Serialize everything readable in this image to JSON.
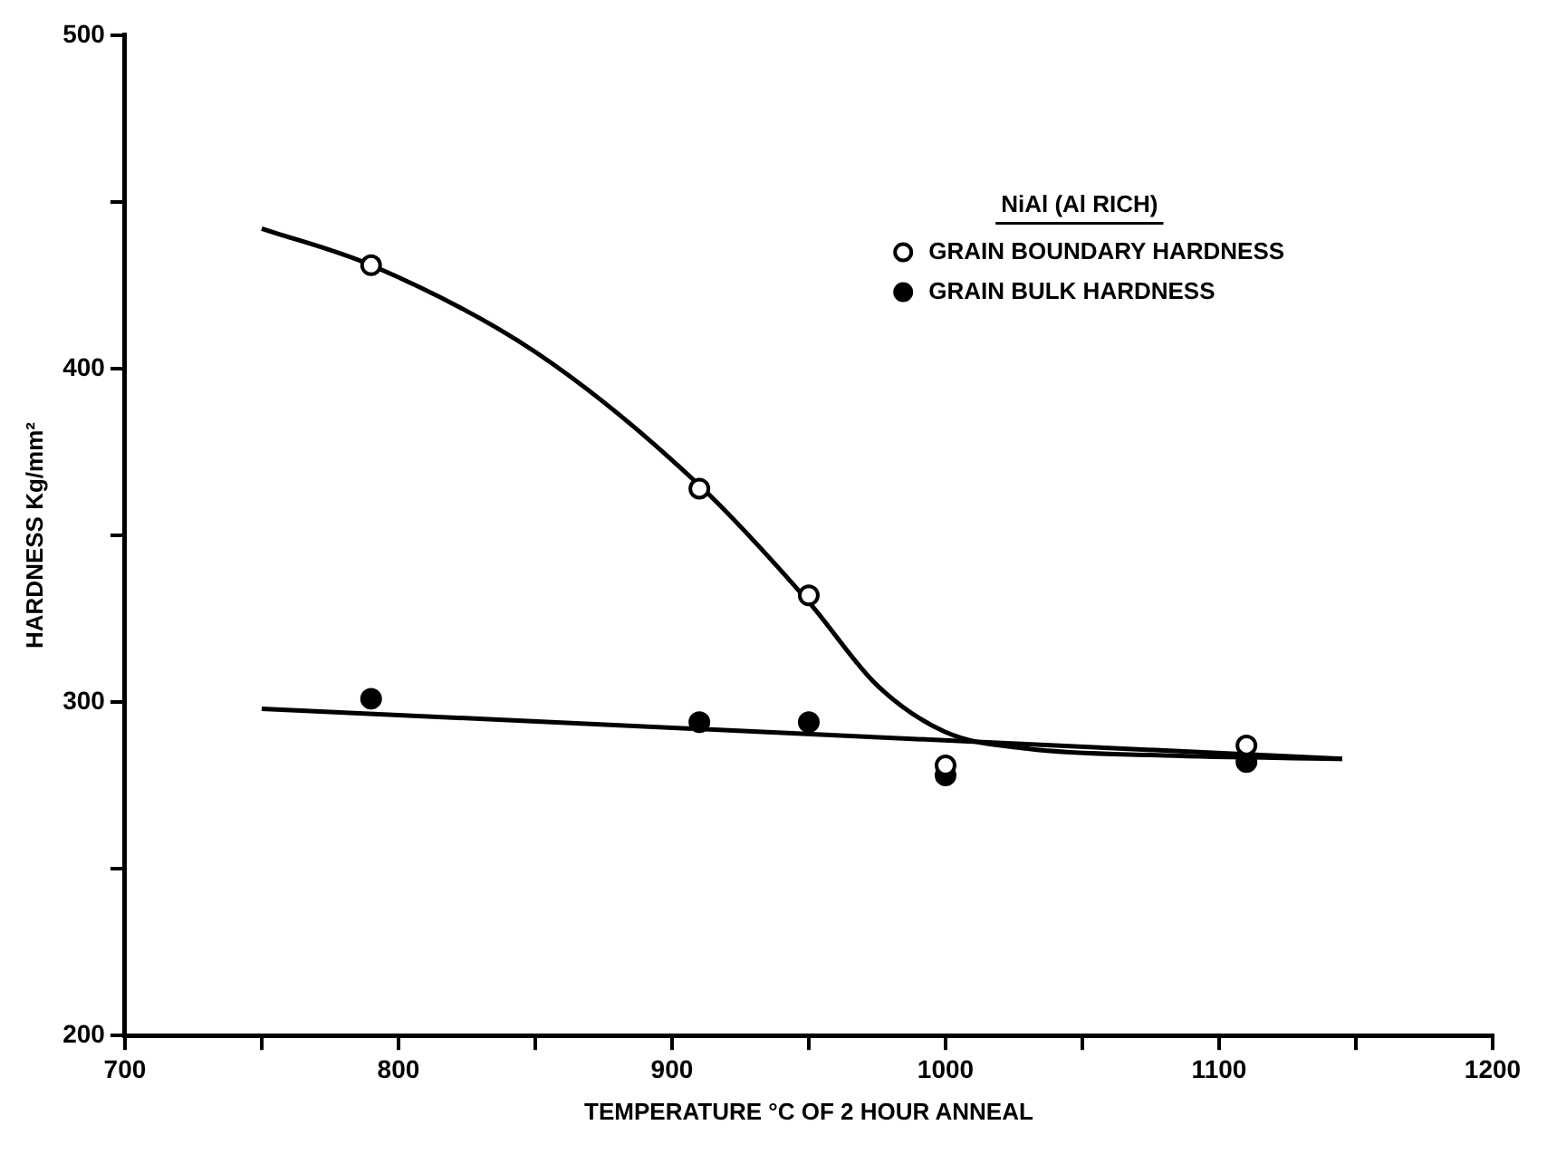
{
  "chart_data": {
    "type": "scatter",
    "xlabel": "TEMPERATURE °C OF 2 HOUR ANNEAL",
    "ylabel": "HARDNESS Kg/mm²",
    "legend_title": "NiAl (Al RICH)",
    "legend": "top right",
    "grid": false,
    "marker": "circle",
    "xlim": [
      700,
      1200
    ],
    "xticks": [
      700,
      {
        "value": 750,
        "label": null
      },
      800,
      {
        "value": 850,
        "label": null
      },
      900,
      {
        "value": 950,
        "label": null
      },
      1000,
      {
        "value": 1050,
        "label": null
      },
      1100,
      {
        "value": 1150,
        "label": null
      },
      1200
    ],
    "ylim": [
      200,
      500
    ],
    "yticks": [
      200,
      {
        "value": 250,
        "label": null
      },
      300,
      {
        "value": 350,
        "label": null
      },
      400,
      {
        "value": 450,
        "label": null
      },
      500
    ],
    "series": [
      {
        "name": "GRAIN BOUNDARY HARDNESS",
        "color": "#000000",
        "x": [
          790,
          910,
          950,
          1000,
          1110
        ],
        "values": [
          431,
          364,
          332,
          281,
          287
        ]
      },
      {
        "name": "GRAIN BULK HARDNESS",
        "color": "#000000",
        "x": [
          790,
          910,
          950,
          1000,
          1110
        ],
        "values": [
          301,
          294,
          294,
          278,
          282
        ]
      },
      {
        "type": "line",
        "marker": "none",
        "color": "#000000",
        "x": [
          750,
          790,
          850,
          910,
          950,
          975,
          1000,
          1030,
          1080,
          1145
        ],
        "values": [
          442,
          431,
          405,
          365,
          330,
          305,
          291,
          286,
          284,
          283
        ]
      },
      {
        "type": "line",
        "marker": "none",
        "color": "#000000",
        "x": [
          750,
          1145
        ],
        "values": [
          298,
          283
        ]
      }
    ]
  }
}
